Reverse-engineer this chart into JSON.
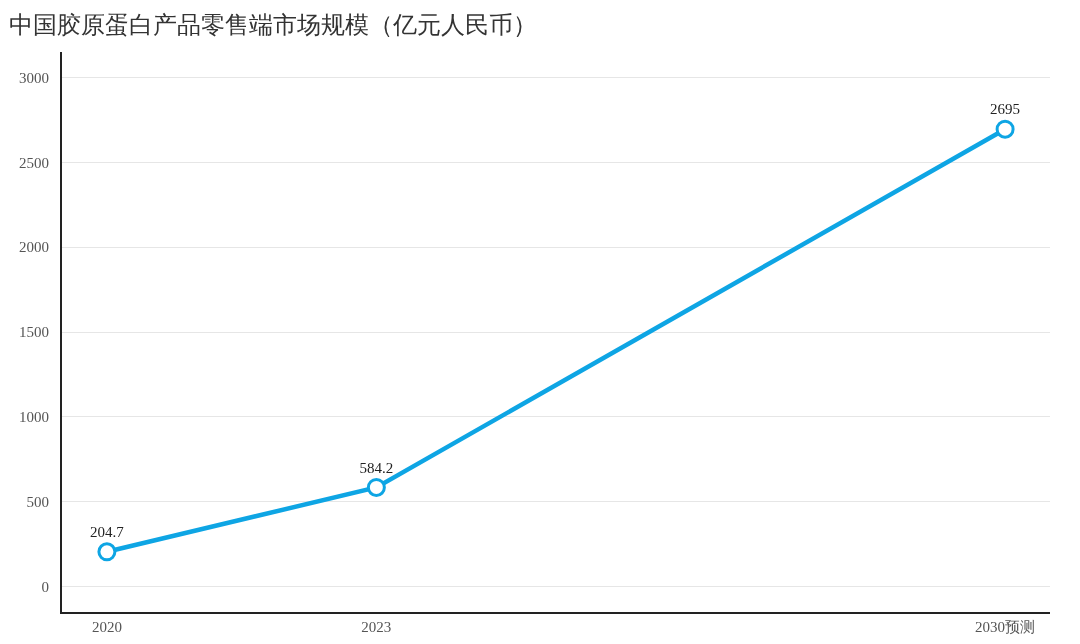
{
  "chart_data": {
    "type": "line",
    "title": "中国胶原蛋白产品零售端市场规模（亿元人民币）",
    "x": [
      2020,
      2023,
      2030
    ],
    "series": [
      {
        "color": "#0ea5e4",
        "values": [
          204.7,
          584.2,
          2695
        ]
      }
    ],
    "xlim": [
      2019.5,
      2030.5
    ],
    "xticks": [
      2020,
      2023,
      {
        "value": 2030,
        "label": "2030预测"
      }
    ],
    "ylim": [
      -150,
      3150
    ],
    "yticks": [
      0,
      500,
      1000,
      1500,
      2000,
      2500,
      3000
    ],
    "grid": "y",
    "marker": "circle",
    "line_style": "solid",
    "data_labels": true
  }
}
